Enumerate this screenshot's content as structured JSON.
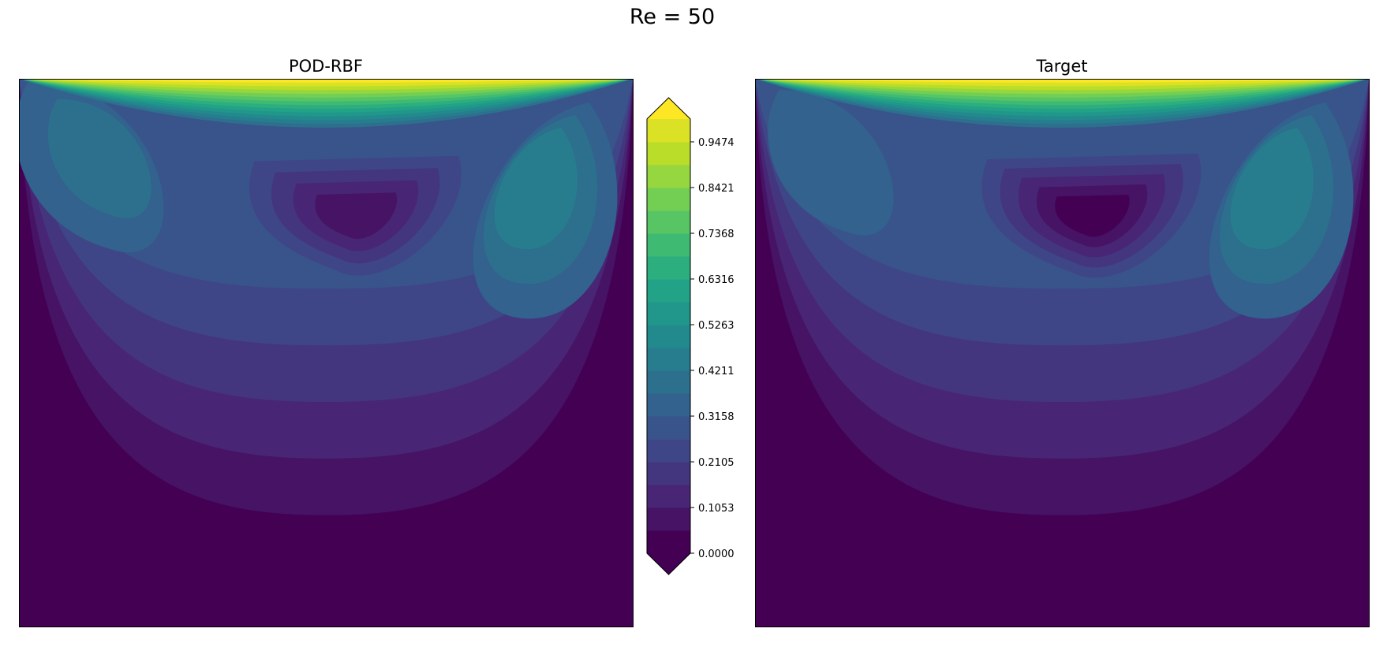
{
  "figure": {
    "suptitle": "Re = 50"
  },
  "chart_data": [
    {
      "type": "heatmap",
      "title": "POD-RBF",
      "xlabel": "",
      "ylabel": "",
      "field": "lid-driven cavity velocity magnitude (filled contours)",
      "value_range": [
        0.0,
        1.0
      ],
      "features": {
        "lid_max": 1.0,
        "core_min_level": 0.0526,
        "left_eddy_peak": 0.36,
        "right_eddy_peak": 0.4,
        "bottom_level": 0.0
      }
    },
    {
      "type": "heatmap",
      "title": "Target",
      "xlabel": "",
      "ylabel": "",
      "field": "lid-driven cavity velocity magnitude (filled contours)",
      "value_range": [
        0.0,
        1.0
      ],
      "features": {
        "lid_max": 1.0,
        "core_min_level": 0.0,
        "left_eddy_peak": 0.34,
        "right_eddy_peak": 0.42,
        "bottom_level": 0.0
      }
    }
  ],
  "colorbar": {
    "colormap": "viridis",
    "extend": "both",
    "level_count": 20,
    "level_min": 0.0,
    "level_max": 1.0,
    "tick_values": [
      0.0,
      0.1053,
      0.2105,
      0.3158,
      0.4211,
      0.5263,
      0.6316,
      0.7368,
      0.8421,
      0.9474
    ],
    "tick_labels": [
      "0.0000",
      "0.1053",
      "0.2105",
      "0.3158",
      "0.4211",
      "0.5263",
      "0.6316",
      "0.7368",
      "0.8421",
      "0.9474"
    ]
  }
}
